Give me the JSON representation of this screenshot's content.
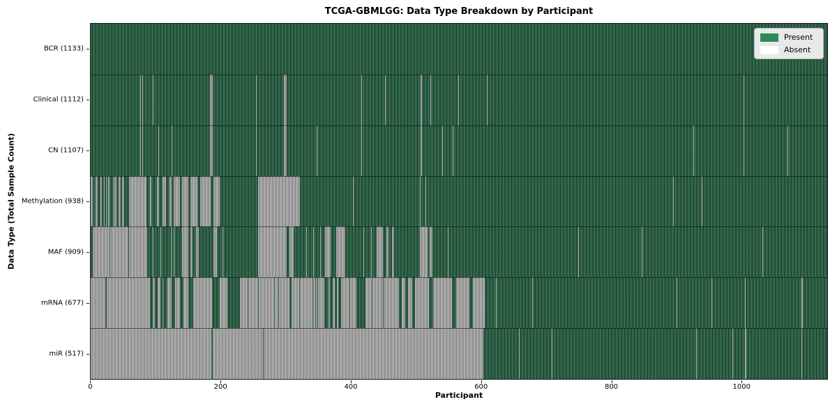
{
  "chart_data": {
    "type": "heatmap",
    "title": "TCGA-GBMLGG: Data Type Breakdown by Participant",
    "xlabel": "Participant",
    "ylabel": "Data Type (Total Sample Count)",
    "x_ticks": [
      0,
      200,
      400,
      600,
      800,
      1000
    ],
    "x_max": 1133,
    "grid": false,
    "legend_position": "upper right",
    "legend": [
      {
        "label": "Present",
        "color": "#2e8b57"
      },
      {
        "label": "Absent",
        "color": "#ffffff"
      }
    ],
    "colors": {
      "present_stripe_light": "#3b7355",
      "present_stripe_dark": "#1d4531",
      "absent_stripe_light": "#b3b3b3",
      "absent_stripe_dark": "#8a8a8a",
      "row_separator": "rgba(0,0,0,0.5)",
      "spine": "#1a1a1a",
      "legend_bg": "#e7eae8",
      "legend_border": "#b4b4b4"
    },
    "rows": [
      {
        "label": "BCR (1133)",
        "data_type": "BCR",
        "total_samples": 1133,
        "base": "present",
        "runs": []
      },
      {
        "label": "Clinical (1112)",
        "data_type": "Clinical",
        "total_samples": 1112,
        "base": "present",
        "runs": [
          [
            76,
            77,
            "absent"
          ],
          [
            79,
            80,
            "absent"
          ],
          [
            96,
            97,
            "absent"
          ],
          [
            184,
            188,
            "absent"
          ],
          [
            254,
            255,
            "absent"
          ],
          [
            297,
            301,
            "absent"
          ],
          [
            416,
            417,
            "absent"
          ],
          [
            453,
            454,
            "absent"
          ],
          [
            508,
            510,
            "absent"
          ],
          [
            523,
            524,
            "absent"
          ],
          [
            565,
            566,
            "absent"
          ],
          [
            609,
            610,
            "absent"
          ],
          [
            1004,
            1005,
            "absent"
          ]
        ]
      },
      {
        "label": "CN (1107)",
        "data_type": "CN",
        "total_samples": 1107,
        "base": "present",
        "runs": [
          [
            76,
            77,
            "absent"
          ],
          [
            79,
            80,
            "absent"
          ],
          [
            104,
            105,
            "absent"
          ],
          [
            124,
            125,
            "absent"
          ],
          [
            184,
            188,
            "absent"
          ],
          [
            254,
            255,
            "absent"
          ],
          [
            297,
            301,
            "absent"
          ],
          [
            348,
            349,
            "absent"
          ],
          [
            416,
            417,
            "absent"
          ],
          [
            508,
            510,
            "absent"
          ],
          [
            541,
            542,
            "absent"
          ],
          [
            557,
            558,
            "absent"
          ],
          [
            927,
            928,
            "absent"
          ],
          [
            1004,
            1005,
            "absent"
          ],
          [
            1072,
            1073,
            "absent"
          ]
        ]
      },
      {
        "label": "Methylation (938)",
        "data_type": "Methylation",
        "total_samples": 938,
        "base": "present",
        "runs": [
          [
            0,
            3,
            "absent"
          ],
          [
            7,
            11,
            "absent"
          ],
          [
            15,
            17,
            "absent"
          ],
          [
            20,
            21,
            "absent"
          ],
          [
            24,
            25,
            "absent"
          ],
          [
            27,
            29,
            "absent"
          ],
          [
            34,
            35,
            "absent"
          ],
          [
            37,
            40,
            "absent"
          ],
          [
            43,
            46,
            "absent"
          ],
          [
            48,
            51,
            "absent"
          ],
          [
            59,
            86,
            "absent"
          ],
          [
            91,
            93,
            "absent"
          ],
          [
            102,
            105,
            "absent"
          ],
          [
            111,
            116,
            "absent"
          ],
          [
            121,
            125,
            "absent"
          ],
          [
            128,
            137,
            "absent"
          ],
          [
            141,
            150,
            "absent"
          ],
          [
            153,
            164,
            "absent"
          ],
          [
            168,
            185,
            "absent"
          ],
          [
            189,
            199,
            "absent"
          ],
          [
            258,
            322,
            "absent"
          ],
          [
            403,
            404,
            "absent"
          ],
          [
            506,
            507,
            "absent"
          ],
          [
            515,
            516,
            "absent"
          ],
          [
            896,
            897,
            "absent"
          ],
          [
            940,
            941,
            "absent"
          ]
        ]
      },
      {
        "label": "MAF (909)",
        "data_type": "MAF",
        "total_samples": 909,
        "base": "present",
        "runs": [
          [
            3,
            29,
            "absent"
          ],
          [
            30,
            58,
            "absent"
          ],
          [
            59,
            87,
            "absent"
          ],
          [
            96,
            97,
            "absent"
          ],
          [
            107,
            108,
            "absent"
          ],
          [
            123,
            124,
            "absent"
          ],
          [
            128,
            129,
            "absent"
          ],
          [
            141,
            150,
            "absent"
          ],
          [
            153,
            157,
            "absent"
          ],
          [
            162,
            166,
            "absent"
          ],
          [
            189,
            194,
            "absent"
          ],
          [
            203,
            204,
            "absent"
          ],
          [
            258,
            302,
            "absent"
          ],
          [
            306,
            312,
            "absent"
          ],
          [
            331,
            332,
            "absent"
          ],
          [
            342,
            343,
            "absent"
          ],
          [
            353,
            354,
            "absent"
          ],
          [
            360,
            369,
            "absent"
          ],
          [
            378,
            392,
            "absent"
          ],
          [
            420,
            421,
            "absent"
          ],
          [
            431,
            432,
            "absent"
          ],
          [
            440,
            450,
            "absent"
          ],
          [
            455,
            458,
            "absent"
          ],
          [
            464,
            467,
            "absent"
          ],
          [
            506,
            518,
            "absent"
          ],
          [
            521,
            526,
            "absent"
          ],
          [
            549,
            550,
            "absent"
          ],
          [
            750,
            751,
            "absent"
          ],
          [
            848,
            849,
            "absent"
          ],
          [
            1033,
            1034,
            "absent"
          ]
        ]
      },
      {
        "label": "mRNA (677)",
        "data_type": "mRNA",
        "total_samples": 677,
        "base": "absent",
        "runs": [
          [
            23,
            25,
            "present"
          ],
          [
            91,
            96,
            "present"
          ],
          [
            99,
            103,
            "present"
          ],
          [
            107,
            110,
            "present"
          ],
          [
            112,
            118,
            "present"
          ],
          [
            124,
            130,
            "present"
          ],
          [
            137,
            143,
            "present"
          ],
          [
            150,
            158,
            "present"
          ],
          [
            187,
            198,
            "present"
          ],
          [
            210,
            230,
            "present"
          ],
          [
            241,
            242,
            "present"
          ],
          [
            257,
            258,
            "present"
          ],
          [
            282,
            283,
            "present"
          ],
          [
            289,
            290,
            "present"
          ],
          [
            306,
            309,
            "present"
          ],
          [
            321,
            322,
            "present"
          ],
          [
            341,
            342,
            "present"
          ],
          [
            345,
            346,
            "present"
          ],
          [
            349,
            350,
            "present"
          ],
          [
            359,
            366,
            "present"
          ],
          [
            368,
            372,
            "present"
          ],
          [
            375,
            379,
            "present"
          ],
          [
            381,
            385,
            "present"
          ],
          [
            398,
            399,
            "present"
          ],
          [
            409,
            423,
            "present"
          ],
          [
            432,
            433,
            "present"
          ],
          [
            450,
            451,
            "present"
          ],
          [
            474,
            478,
            "present"
          ],
          [
            484,
            488,
            "present"
          ],
          [
            495,
            499,
            "present"
          ],
          [
            520,
            527,
            "present"
          ],
          [
            556,
            562,
            "present"
          ],
          [
            583,
            588,
            "present"
          ],
          [
            606,
            1133,
            "present"
          ],
          [
            623,
            624,
            "absent"
          ],
          [
            679,
            680,
            "absent"
          ],
          [
            901,
            902,
            "absent"
          ],
          [
            955,
            956,
            "absent"
          ],
          [
            1006,
            1008,
            "absent"
          ],
          [
            1093,
            1095,
            "absent"
          ]
        ]
      },
      {
        "label": "miR (517)",
        "data_type": "miR",
        "total_samples": 517,
        "base": "absent",
        "runs": [
          [
            186,
            188,
            "present"
          ],
          [
            265,
            266,
            "present"
          ],
          [
            604,
            1133,
            "present"
          ],
          [
            659,
            660,
            "absent"
          ],
          [
            709,
            710,
            "absent"
          ],
          [
            931,
            932,
            "absent"
          ],
          [
            987,
            988,
            "absent"
          ],
          [
            1006,
            1009,
            "absent"
          ],
          [
            1093,
            1094,
            "absent"
          ]
        ]
      }
    ]
  }
}
